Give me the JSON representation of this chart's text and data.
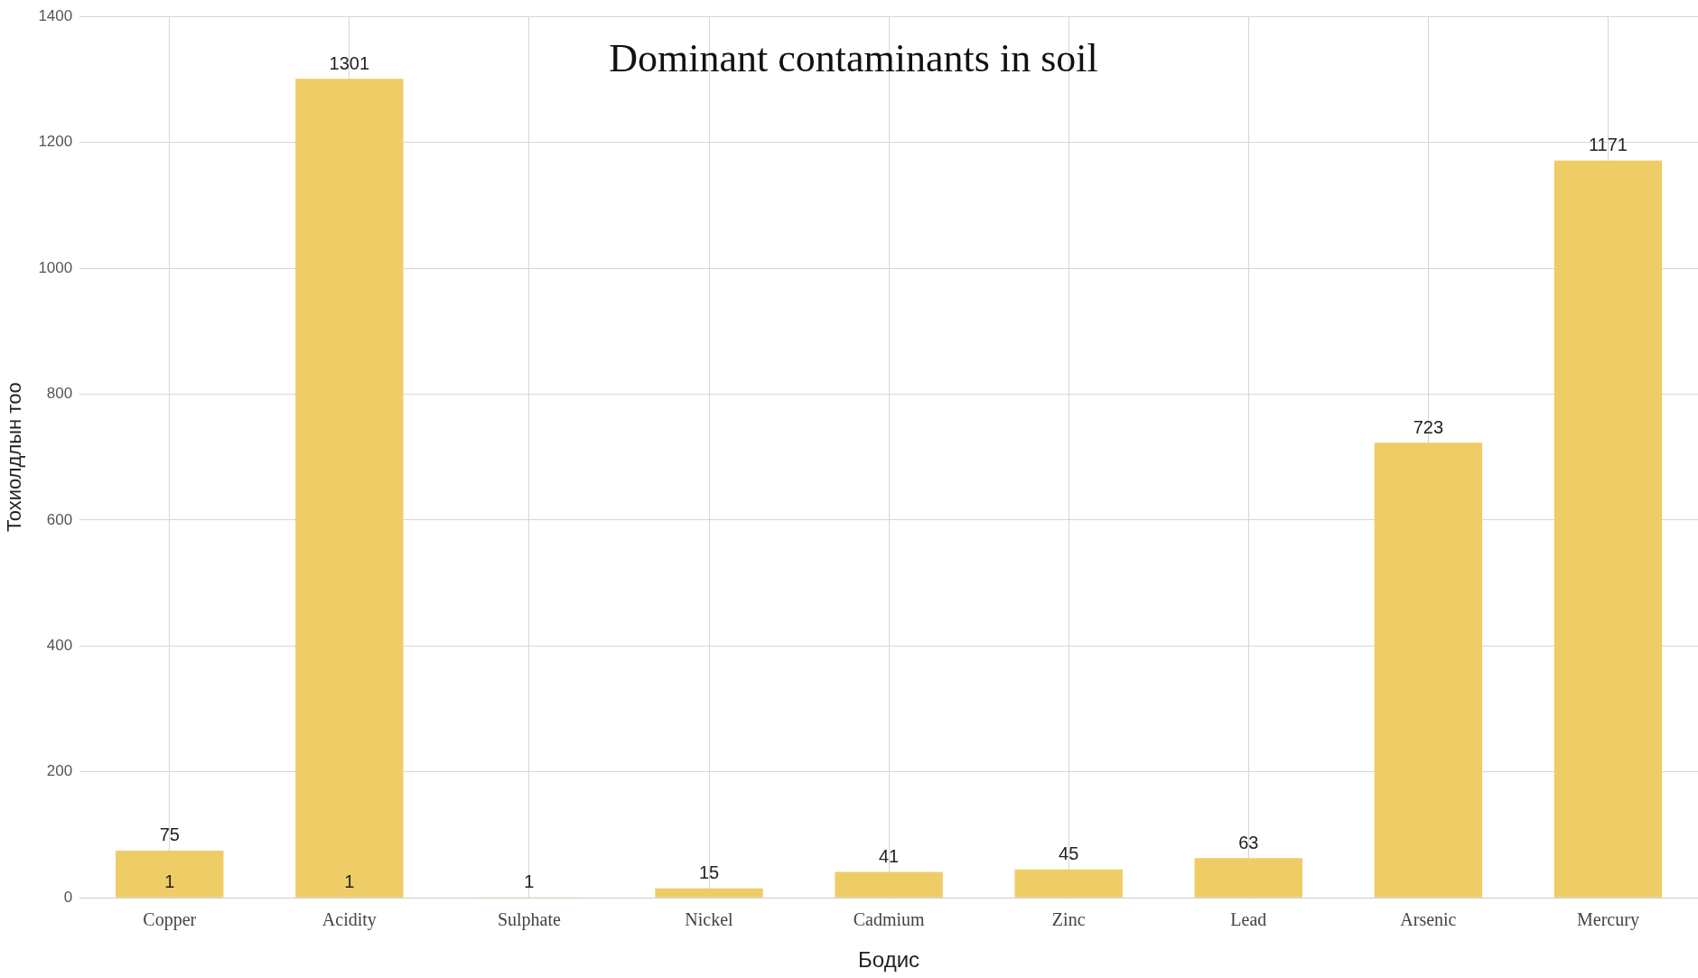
{
  "chart_data": {
    "type": "bar",
    "title": "Dominant contaminants in soil",
    "xlabel": "Бодис",
    "ylabel": "Тохиолдлын тоо",
    "categories": [
      "Copper",
      "Acidity",
      "Sulphate",
      "Nickel",
      "Cadmium",
      "Zinc",
      "Lead",
      "Arsenic",
      "Mercury"
    ],
    "values": [
      75,
      1301,
      1,
      15,
      41,
      45,
      63,
      723,
      1171
    ],
    "color": "#efcd66",
    "ylim": [
      0,
      1400
    ],
    "yticks": [
      0,
      200,
      400,
      600,
      800,
      1000,
      1200,
      1400
    ],
    "grid": true,
    "data_labels": true,
    "annotations": [
      {
        "text": "1",
        "x": "Copper",
        "y": 1
      },
      {
        "text": "1",
        "x": "Acidity",
        "y": 1
      }
    ]
  }
}
